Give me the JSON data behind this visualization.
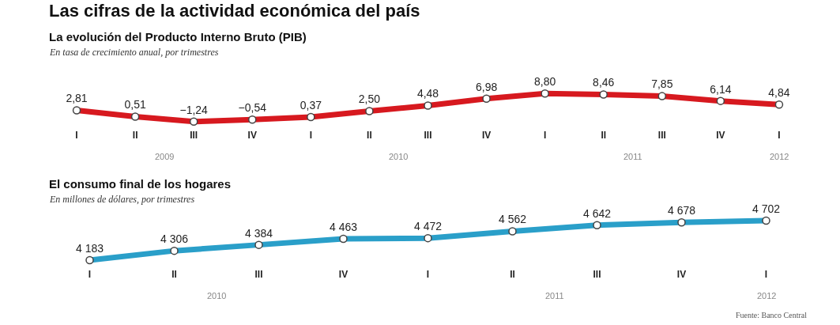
{
  "chart_data": [
    {
      "type": "line",
      "title": "La evolución del Producto Interno Bruto (PIB)",
      "subtitle": "En tasa de crecimiento anual, por trimestres",
      "categories": [
        "I",
        "II",
        "III",
        "IV",
        "I",
        "II",
        "III",
        "IV",
        "I",
        "II",
        "III",
        "IV",
        "I"
      ],
      "series": [
        {
          "color": "#d7191f",
          "values": [
            2.81,
            0.51,
            -1.24,
            -0.54,
            0.37,
            2.5,
            4.48,
            6.98,
            8.8,
            8.46,
            7.85,
            6.14,
            4.84
          ],
          "value_labels": [
            "2,81",
            "0,51",
            "−1,24",
            "−0,54",
            "0,37",
            "2,50",
            "4,48",
            "6,98",
            "8,80",
            "8,46",
            "7,85",
            "6,14",
            "4,84"
          ]
        }
      ],
      "annotations": [
        "2009",
        "2010",
        "2011",
        "2012",
        "Las cifras de la actividad económica del país"
      ],
      "marker": "circle"
    },
    {
      "type": "line",
      "title": "El consumo final de los hogares",
      "subtitle": "En millones de dólares, por trimestres",
      "categories": [
        "I",
        "II",
        "III",
        "IV",
        "I",
        "II",
        "III",
        "IV",
        "I"
      ],
      "series": [
        {
          "color": "#2a9fc9",
          "values": [
            4183,
            4306,
            4384,
            4463,
            4472,
            4562,
            4642,
            4678,
            4702
          ],
          "value_labels": [
            "4 183",
            "4 306",
            "4 384",
            "4 463",
            "4 472",
            "4 562",
            "4 642",
            "4 678",
            "4 702"
          ]
        }
      ],
      "annotations": [
        "2010",
        "2011",
        "2012",
        "Fuente: Banco Central"
      ],
      "marker": "circle"
    }
  ]
}
